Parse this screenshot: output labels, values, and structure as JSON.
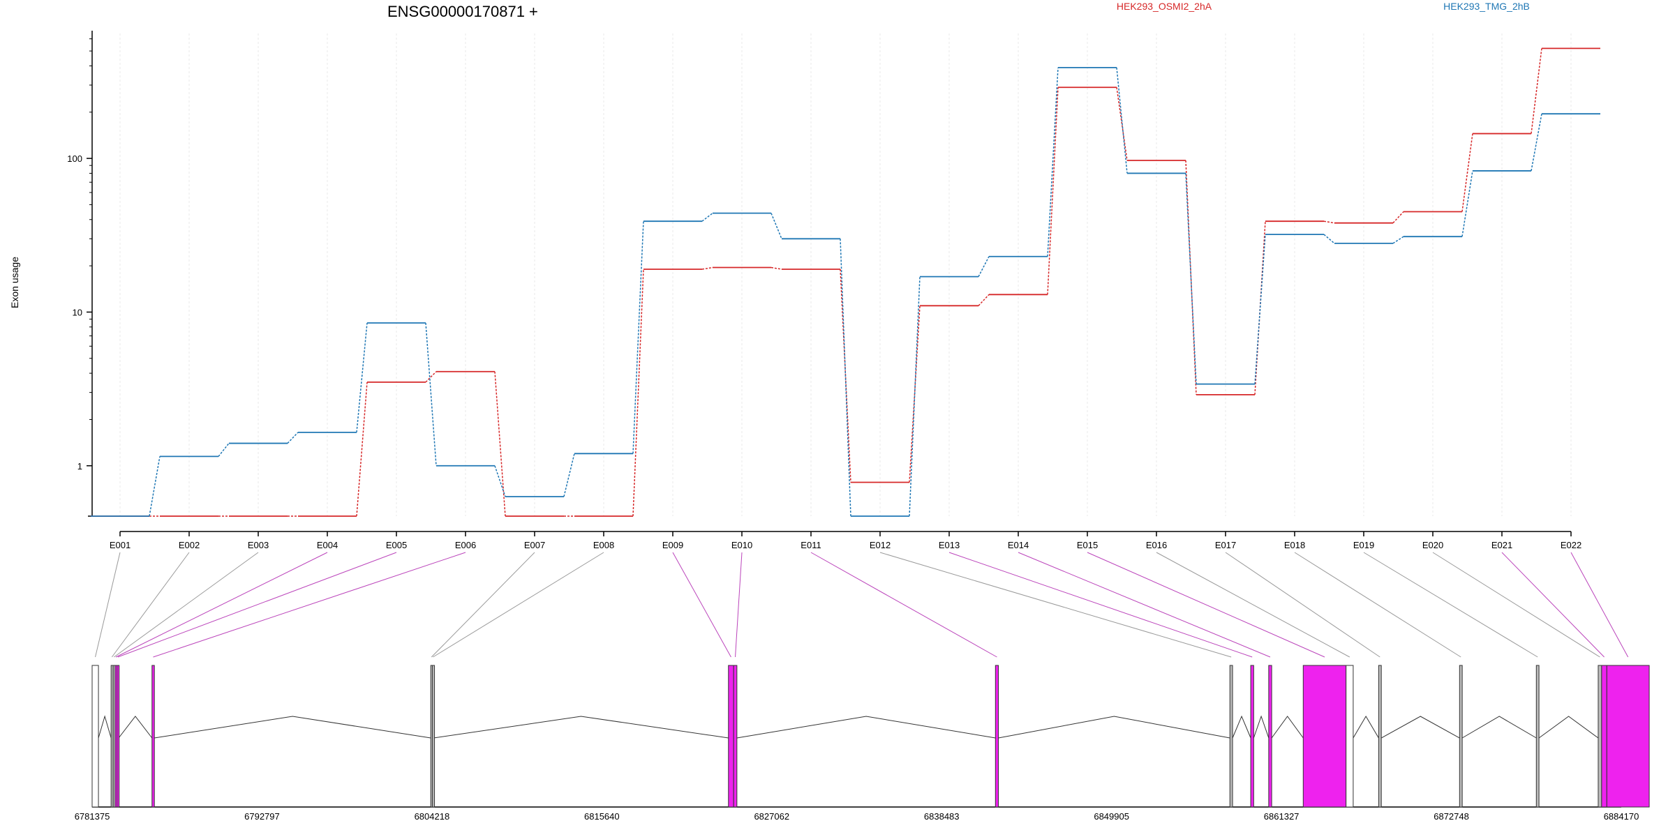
{
  "chart_data": {
    "type": "line",
    "title": "ENSG00000170871 +",
    "ylabel": "Exon usage",
    "xlabel": "",
    "yscale": "log",
    "ylim": [
      0.47,
      650
    ],
    "y_ticks": [
      1,
      10,
      100
    ],
    "y_tick_labels": [
      "1",
      "10",
      "100"
    ],
    "grid": "vertical-light",
    "legend_placement": "top",
    "categories": [
      "E001",
      "E002",
      "E003",
      "E004",
      "E005",
      "E006",
      "E007",
      "E008",
      "E009",
      "E010",
      "E011",
      "E012",
      "E013",
      "E014",
      "E015",
      "E016",
      "E017",
      "E018",
      "E019",
      "E020",
      "E021",
      "E022"
    ],
    "series": [
      {
        "name": "HEK293_OSMI2_2hA",
        "color": "#d62728",
        "values": [
          0.47,
          0.47,
          0.47,
          0.47,
          3.5,
          4.1,
          0.47,
          0.47,
          19,
          19.5,
          19,
          0.78,
          11,
          13,
          290,
          97,
          2.9,
          39,
          38,
          45,
          145,
          520
        ]
      },
      {
        "name": "HEK293_TMG_2hB",
        "color": "#1f77b4",
        "values": [
          0.47,
          1.15,
          1.4,
          1.65,
          8.5,
          1.0,
          0.63,
          1.2,
          39,
          44,
          30,
          0.47,
          17,
          23,
          390,
          80,
          3.4,
          32,
          28,
          31,
          83,
          195
        ]
      }
    ],
    "gene_model": {
      "coord_ticks": [
        "6781375",
        "6792797",
        "6804218",
        "6815640",
        "6827062",
        "6838483",
        "6849905",
        "6861327",
        "6872748",
        "6884170"
      ],
      "coord_range": [
        6781375,
        6884170
      ],
      "highlight_color": "#ee22ee",
      "exons": [
        {
          "id": "E001",
          "start": 6781375,
          "end": 6781800,
          "significant": false
        },
        {
          "id": "E002",
          "start": 6782650,
          "end": 6782760,
          "significant": false
        },
        {
          "id": "E003",
          "start": 6782790,
          "end": 6782900,
          "significant": false
        },
        {
          "id": "E004",
          "start": 6782920,
          "end": 6783030,
          "significant": true
        },
        {
          "id": "E005",
          "start": 6783050,
          "end": 6783160,
          "significant": true
        },
        {
          "id": "E006",
          "start": 6785400,
          "end": 6785560,
          "significant": true
        },
        {
          "id": "E007",
          "start": 6804140,
          "end": 6804240,
          "significant": false
        },
        {
          "id": "E008",
          "start": 6804250,
          "end": 6804330,
          "significant": false
        },
        {
          "id": "E009",
          "start": 6824150,
          "end": 6824500,
          "significant": true
        },
        {
          "id": "E010",
          "start": 6824500,
          "end": 6824720,
          "significant": true
        },
        {
          "id": "E011",
          "start": 6842100,
          "end": 6842300,
          "significant": true
        },
        {
          "id": "E012",
          "start": 6857860,
          "end": 6858040,
          "significant": false
        },
        {
          "id": "E013",
          "start": 6859260,
          "end": 6859460,
          "significant": true
        },
        {
          "id": "E014",
          "start": 6860470,
          "end": 6860670,
          "significant": true
        },
        {
          "id": "E015",
          "start": 6862790,
          "end": 6865670,
          "significant": true
        },
        {
          "id": "E016",
          "start": 6865670,
          "end": 6866150,
          "significant": false
        },
        {
          "id": "E017",
          "start": 6867860,
          "end": 6868040,
          "significant": false
        },
        {
          "id": "E018",
          "start": 6873300,
          "end": 6873480,
          "significant": false
        },
        {
          "id": "E019",
          "start": 6878460,
          "end": 6878640,
          "significant": false
        },
        {
          "id": "E020",
          "start": 6882620,
          "end": 6882850,
          "significant": false
        },
        {
          "id": "E021",
          "start": 6882850,
          "end": 6883200,
          "significant": true
        },
        {
          "id": "E022",
          "start": 6883200,
          "end": 6886050,
          "significant": true
        }
      ]
    }
  }
}
